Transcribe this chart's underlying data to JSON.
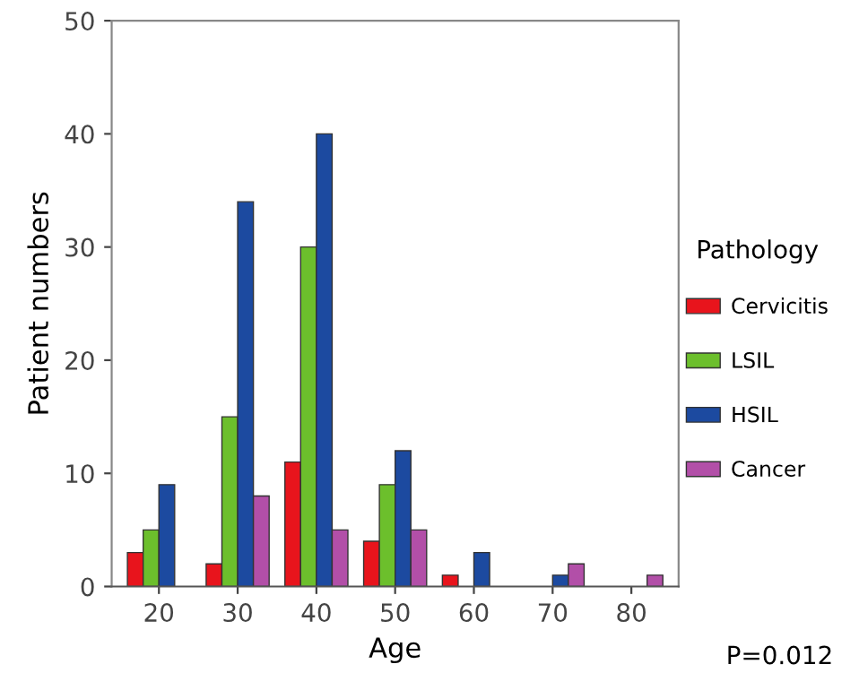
{
  "chart_data": {
    "type": "bar",
    "xlabel": "Age",
    "ylabel": "Patient numbers",
    "legend_title": "Pathology",
    "categories": [
      "20",
      "30",
      "40",
      "50",
      "60",
      "70",
      "80"
    ],
    "series": [
      {
        "name": "Cervicitis",
        "color": "#e8141c",
        "values": [
          3,
          2,
          11,
          4,
          1,
          null,
          null
        ]
      },
      {
        "name": "LSIL",
        "color": "#6cbf2c",
        "values": [
          5,
          15,
          30,
          9,
          null,
          null,
          null
        ]
      },
      {
        "name": "HSIL",
        "color": "#1c4aa0",
        "values": [
          9,
          34,
          40,
          12,
          3,
          1,
          null
        ]
      },
      {
        "name": "Cancer",
        "color": "#b24fa8",
        "values": [
          null,
          8,
          5,
          5,
          null,
          2,
          1
        ]
      }
    ],
    "ylim": [
      0,
      50
    ],
    "yticks": [
      0,
      10,
      20,
      30,
      40,
      50
    ],
    "grid": false,
    "legend": "right",
    "annotations": [
      "P=0.012"
    ]
  }
}
